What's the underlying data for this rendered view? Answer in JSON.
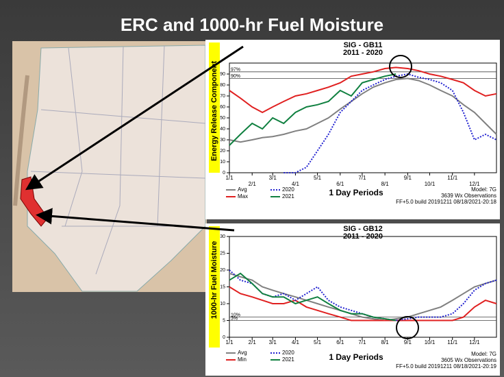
{
  "slide": {
    "title": "ERC and 1000-hr Fuel Moisture"
  },
  "chart_data": [
    {
      "type": "line",
      "title": "SIG - GB11",
      "subtitle": "2011 - 2020",
      "y_label": "Energy Release Component",
      "x_label": "1 Day Periods",
      "model": "Model: 7G",
      "observations": "3639 Wx Observations",
      "build": "FF+5.0 build 20191211 08/18/2021-20:18",
      "x": [
        1,
        16,
        32,
        46,
        60,
        75,
        91,
        106,
        121,
        136,
        152,
        167,
        182,
        197,
        213,
        228,
        244,
        259,
        274,
        289,
        305,
        320,
        335,
        350,
        365
      ],
      "xlim": [
        1,
        365
      ],
      "xticks": [
        {
          "value": 1,
          "label": "1/1"
        },
        {
          "value": 32,
          "label": "2/1"
        },
        {
          "value": 60,
          "label": "3/1"
        },
        {
          "value": 91,
          "label": "4/1"
        },
        {
          "value": 121,
          "label": "5/1"
        },
        {
          "value": 152,
          "label": "6/1"
        },
        {
          "value": 182,
          "label": "7/1"
        },
        {
          "value": 213,
          "label": "8/1"
        },
        {
          "value": 244,
          "label": "9/1"
        },
        {
          "value": 274,
          "label": "10/1"
        },
        {
          "value": 305,
          "label": "11/1"
        },
        {
          "value": 335,
          "label": "12/1"
        }
      ],
      "ylim": [
        0,
        100
      ],
      "yticks": [
        0,
        10,
        20,
        30,
        40,
        50,
        60,
        70,
        80,
        90
      ],
      "reference_lines": [
        {
          "value": 92,
          "label": "97%"
        },
        {
          "value": 86,
          "label": "90%"
        }
      ],
      "series": [
        {
          "name": "Avg",
          "color": "#808080",
          "dash": false,
          "values": [
            30,
            28,
            30,
            32,
            33,
            35,
            38,
            40,
            45,
            50,
            58,
            65,
            72,
            78,
            82,
            85,
            86,
            84,
            80,
            75,
            70,
            62,
            55,
            45,
            35
          ]
        },
        {
          "name": "Max",
          "color": "#e02020",
          "dash": false,
          "values": [
            75,
            68,
            60,
            55,
            60,
            65,
            70,
            72,
            75,
            78,
            82,
            88,
            90,
            92,
            95,
            96,
            95,
            93,
            90,
            88,
            85,
            82,
            75,
            70,
            72
          ]
        },
        {
          "name": "2020",
          "color": "#2020d0",
          "dash": true,
          "values": [
            null,
            null,
            null,
            null,
            null,
            0,
            0,
            5,
            20,
            35,
            55,
            65,
            75,
            80,
            85,
            88,
            90,
            87,
            85,
            82,
            75,
            55,
            30,
            35,
            30
          ]
        },
        {
          "name": "2021",
          "color": "#108040",
          "dash": false,
          "values": [
            25,
            35,
            45,
            40,
            50,
            45,
            55,
            60,
            62,
            65,
            75,
            70,
            82,
            85,
            88,
            90,
            null,
            null,
            null,
            null,
            null,
            null,
            null,
            null,
            null
          ]
        }
      ]
    },
    {
      "type": "line",
      "title": "SIG - GB12",
      "subtitle": "2011 - 2020",
      "y_label": "1000-hr Fuel Moisture",
      "x_label": "1 Day Periods",
      "model": "Model: 7G",
      "observations": "3605 Wx Observations",
      "build": "FF+5.0 build 20191211 08/18/2021-20:19",
      "x": [
        1,
        16,
        32,
        46,
        60,
        75,
        91,
        106,
        121,
        136,
        152,
        167,
        182,
        197,
        213,
        228,
        244,
        259,
        274,
        289,
        305,
        320,
        335,
        350,
        365
      ],
      "xlim": [
        1,
        365
      ],
      "xticks": [
        {
          "value": 1,
          "label": "1/1"
        },
        {
          "value": 32,
          "label": "2/1"
        },
        {
          "value": 60,
          "label": "3/1"
        },
        {
          "value": 91,
          "label": "4/1"
        },
        {
          "value": 121,
          "label": "5/1"
        },
        {
          "value": 152,
          "label": "6/1"
        },
        {
          "value": 182,
          "label": "7/1"
        },
        {
          "value": 213,
          "label": "8/1"
        },
        {
          "value": 244,
          "label": "9/1"
        },
        {
          "value": 274,
          "label": "10/1"
        },
        {
          "value": 305,
          "label": "11/1"
        },
        {
          "value": 335,
          "label": "12/1"
        }
      ],
      "ylim": [
        0,
        30
      ],
      "yticks": [
        0,
        5,
        10,
        15,
        20,
        25,
        30
      ],
      "reference_lines": [
        {
          "value": 6,
          "label": "10%"
        },
        {
          "value": 5,
          "label": "3%"
        }
      ],
      "series": [
        {
          "name": "Avg",
          "color": "#808080",
          "dash": false,
          "values": [
            19,
            18,
            17,
            15,
            14,
            13,
            12,
            11,
            10,
            9,
            8,
            7,
            6,
            5.5,
            5,
            5.5,
            6,
            7,
            8,
            9,
            11,
            13,
            15,
            16,
            17
          ]
        },
        {
          "name": "Min",
          "color": "#e02020",
          "dash": false,
          "values": [
            15,
            13,
            12,
            11,
            10,
            10,
            11,
            9,
            8,
            7,
            6,
            5,
            5,
            5,
            5,
            5,
            5,
            5,
            5,
            5,
            5,
            6,
            9,
            11,
            10
          ]
        },
        {
          "name": "2020",
          "color": "#2020d0",
          "dash": true,
          "values": [
            20,
            17,
            16,
            13,
            12,
            13,
            11,
            13,
            15,
            11,
            9,
            8,
            7,
            6,
            5.5,
            5,
            5.5,
            6,
            6,
            6,
            7,
            10,
            14,
            16,
            17
          ]
        },
        {
          "name": "2021",
          "color": "#108040",
          "dash": false,
          "values": [
            17,
            19,
            16,
            13,
            12,
            12,
            10,
            11,
            12,
            10,
            8,
            7,
            7,
            6,
            5.5,
            5,
            null,
            null,
            null,
            null,
            null,
            null,
            null,
            null,
            null
          ]
        }
      ]
    }
  ]
}
